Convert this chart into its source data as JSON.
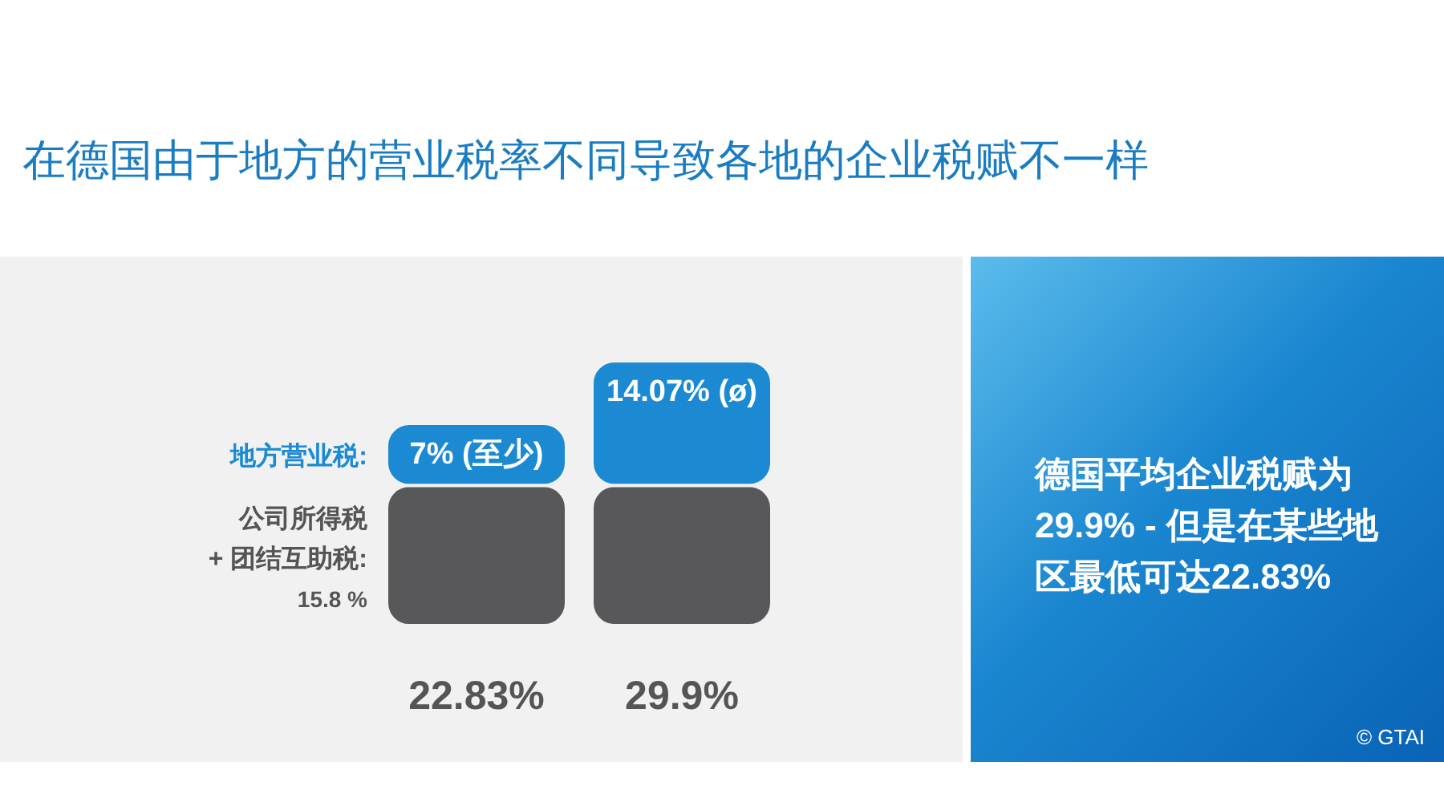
{
  "chart_data": {
    "type": "bar",
    "title": "在德国由于地方的营业税率不同导致各地的企业税赋不一样",
    "categories": [
      null,
      null
    ],
    "stacked": true,
    "relative": false,
    "series": [
      {
        "name": "公司所得税\n+ 团结互助税:\n15.8 %",
        "color": "#58585a",
        "values": [
          15.83,
          15.83
        ]
      },
      {
        "name": "地方营业税:",
        "color": "#1b8ad3",
        "values": [
          7,
          14.07
        ],
        "value_labels": [
          "7% (至少)",
          "14.07% (ø)"
        ]
      }
    ],
    "totals": [
      "22.83%",
      "29.9%"
    ],
    "annotations": [
      "德国平均企业税赋为29.9% - 但是在某些地区最低可达22.83%",
      "© GTAI"
    ]
  }
}
